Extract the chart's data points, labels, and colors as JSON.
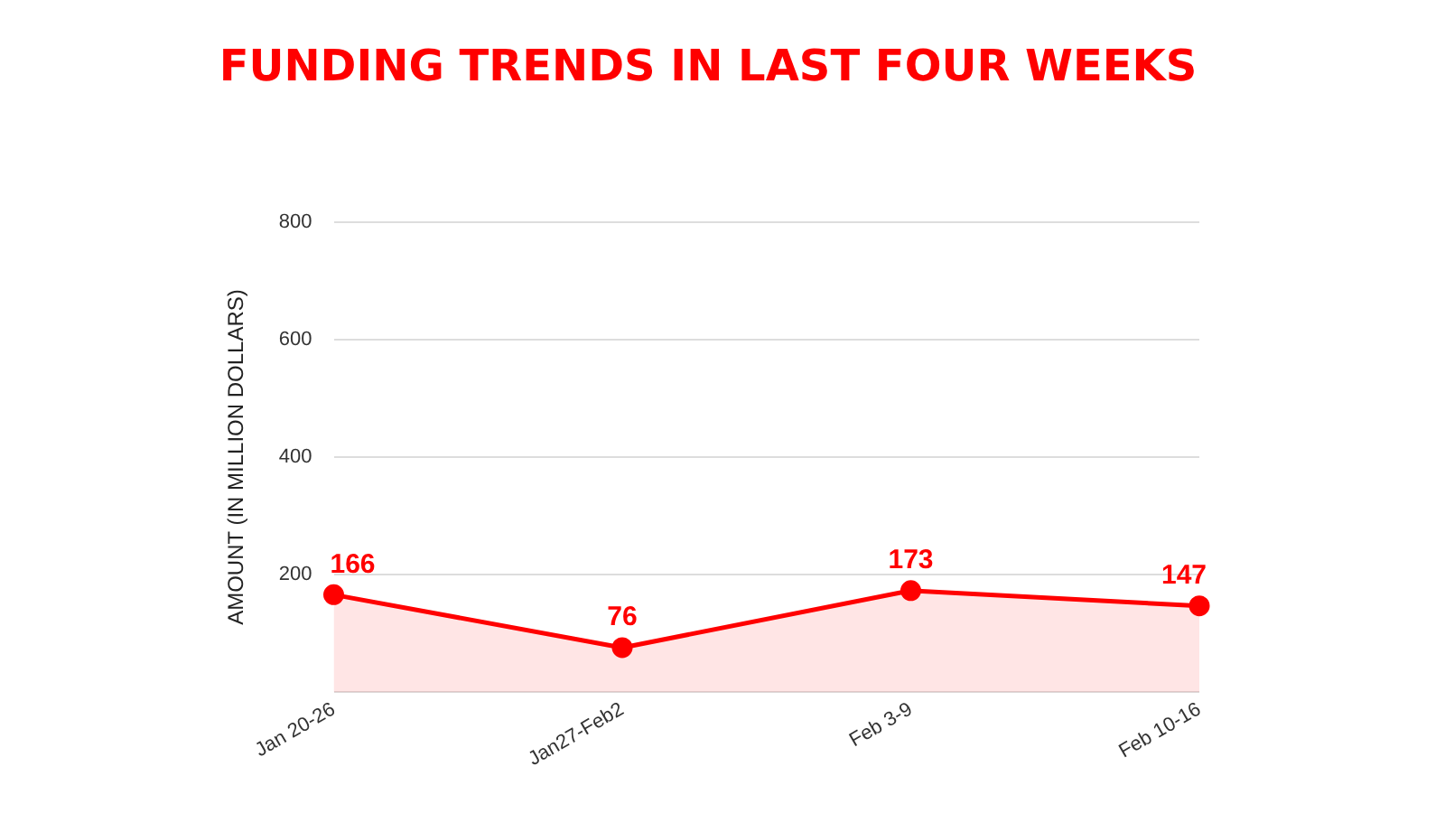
{
  "chart_data": {
    "type": "area",
    "title": "FUNDING TRENDS IN LAST FOUR WEEKS",
    "ylabel": "AMOUNT (IN MILLION DOLLARS)",
    "categories": [
      "Jan 20-26",
      "Jan27-Feb2",
      "Feb 3-9",
      "Feb 10-16"
    ],
    "series": [
      {
        "color": "#ff0000",
        "values": [
          166,
          76,
          173,
          147
        ]
      }
    ],
    "ylim": [
      0,
      800
    ],
    "yticks": [
      {
        "value": 0,
        "label": null
      },
      200,
      400,
      600,
      800
    ],
    "grid": "y",
    "legend": false,
    "marker": "circle",
    "line_style": "solid",
    "data_labels": true
  }
}
